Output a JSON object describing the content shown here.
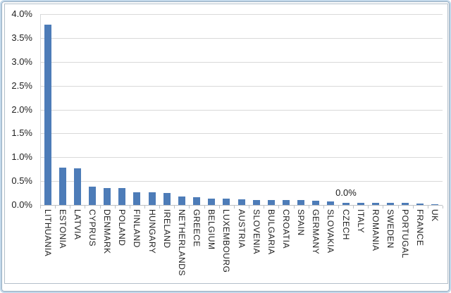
{
  "chart_data": {
    "type": "bar",
    "title": "",
    "xlabel": "",
    "ylabel": "",
    "categories": [
      "LITHUANIA",
      "ESTONIA",
      "LATVIA",
      "CYPRUS",
      "DENMARK",
      "POLAND",
      "FINLAND",
      "HUNGARY",
      "IRELAND",
      "NETHERLANDS",
      "GREECE",
      "BELGIUM",
      "LUXEMBOURG",
      "AUSTRIA",
      "SLOVENIA",
      "BULGARIA",
      "CROATIA",
      "SPAIN",
      "GERMANY",
      "SLOVAKIA",
      "CZECH",
      "ITALY",
      "ROMANIA",
      "SWEDEN",
      "PORTUGAL",
      "FRANCE",
      "UK"
    ],
    "values": [
      3.78,
      0.78,
      0.77,
      0.39,
      0.36,
      0.36,
      0.27,
      0.27,
      0.25,
      0.18,
      0.16,
      0.13,
      0.13,
      0.12,
      0.11,
      0.11,
      0.1,
      0.1,
      0.09,
      0.07,
      0.05,
      0.05,
      0.04,
      0.04,
      0.04,
      0.03,
      0.01
    ],
    "value_unit": "%",
    "ylim": [
      0,
      4.0
    ],
    "ytick_step": 0.5,
    "ytick_labels": [
      "4.0%",
      "3.5%",
      "3.0%",
      "2.5%",
      "2.0%",
      "1.5%",
      "1.0%",
      "0.5%",
      "0.0%"
    ],
    "grid": true,
    "legend": "none",
    "annotation": {
      "text": "0.0%",
      "category": "CZECH",
      "category_index": 20
    },
    "bar_color": "#4d7cb8"
  },
  "colors": {
    "bar": "#4d7cb8",
    "gridline": "#d9d9d9",
    "axis": "#bdc1c5",
    "text": "#1f1f1f",
    "frame_border": "#b3bfca",
    "outer_border": "#c2d8ea"
  }
}
